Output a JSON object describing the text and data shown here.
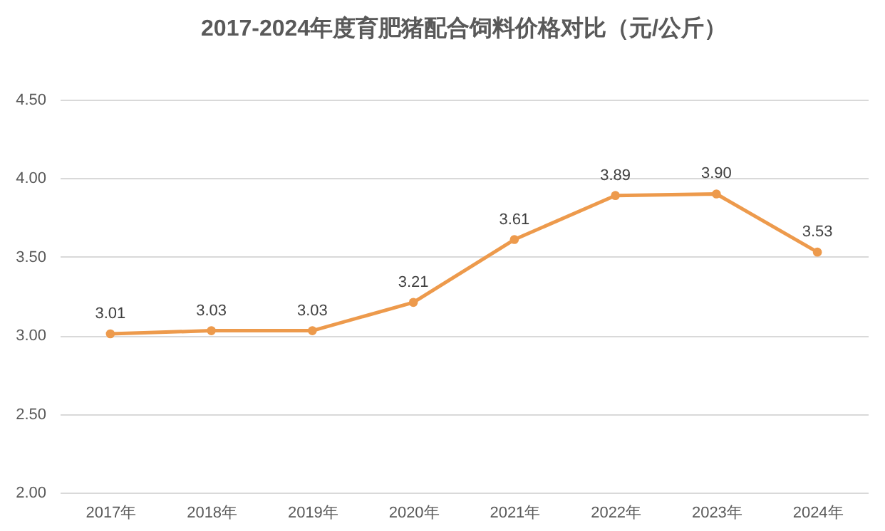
{
  "chart_data": {
    "type": "line",
    "title": "2017-2024年度育肥猪配合饲料价格对比（元/公斤）",
    "categories": [
      "2017年",
      "2018年",
      "2019年",
      "2020年",
      "2021年",
      "2022年",
      "2023年",
      "2024年"
    ],
    "series": [
      {
        "color": "#ed9a4c",
        "values": [
          3.01,
          3.03,
          3.03,
          3.21,
          3.61,
          3.89,
          3.9,
          3.53
        ]
      }
    ],
    "value_labels": [
      "3.01",
      "3.03",
      "3.03",
      "3.21",
      "3.61",
      "3.89",
      "3.90",
      "3.53"
    ],
    "ylim": [
      2,
      4.5
    ],
    "yticks": [
      {
        "value": 2,
        "label": "2.00"
      },
      {
        "value": 2.5,
        "label": "2.50"
      },
      {
        "value": 3,
        "label": "3.00"
      },
      {
        "value": 3.5,
        "label": "3.50"
      },
      {
        "value": 4,
        "label": "4.00"
      },
      {
        "value": 4.5,
        "label": "4.50"
      }
    ],
    "grid": "y",
    "marker": "circle",
    "line_style": "solid",
    "legend": false
  }
}
